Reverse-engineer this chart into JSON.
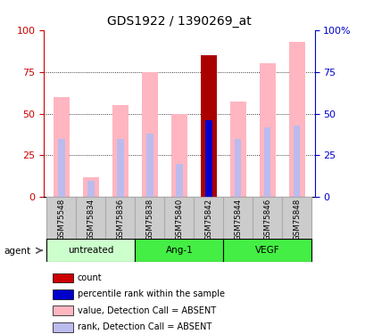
{
  "title": "GDS1922 / 1390269_at",
  "samples": [
    "GSM75548",
    "GSM75834",
    "GSM75836",
    "GSM75838",
    "GSM75840",
    "GSM75842",
    "GSM75844",
    "GSM75846",
    "GSM75848"
  ],
  "pink_bars": [
    60,
    12,
    55,
    75,
    50,
    85,
    57,
    80,
    93
  ],
  "blue_bars": [
    35,
    10,
    35,
    38,
    20,
    46,
    35,
    42,
    43
  ],
  "red_bars": [
    0,
    0,
    0,
    0,
    0,
    85,
    0,
    0,
    0
  ],
  "dark_blue_bars": [
    0,
    0,
    0,
    0,
    0,
    46,
    0,
    0,
    0
  ],
  "ylim": [
    0,
    100
  ],
  "grid_lines": [
    25,
    50,
    75
  ],
  "left_axis_color": "#CC0000",
  "right_axis_color": "#0000CC",
  "bar_width": 0.55,
  "blue_bar_width": 0.22,
  "groups": [
    {
      "label": "untreated",
      "start": 0,
      "end": 2,
      "color": "#CCFFCC"
    },
    {
      "label": "Ang-1",
      "start": 3,
      "end": 5,
      "color": "#44EE44"
    },
    {
      "label": "VEGF",
      "start": 6,
      "end": 8,
      "color": "#44EE44"
    }
  ],
  "legend_items": [
    {
      "color": "#CC0000",
      "label": "count"
    },
    {
      "color": "#0000CC",
      "label": "percentile rank within the sample"
    },
    {
      "color": "#FFB6C1",
      "label": "value, Detection Call = ABSENT"
    },
    {
      "color": "#BBBBEE",
      "label": "rank, Detection Call = ABSENT"
    }
  ],
  "agent_label": "agent",
  "sample_bg_color": "#CCCCCC",
  "sample_border_color": "#AAAAAA"
}
